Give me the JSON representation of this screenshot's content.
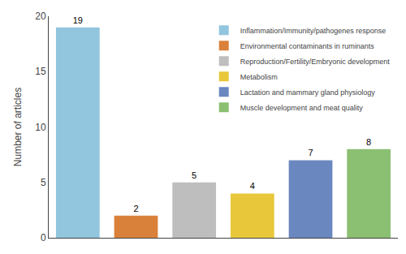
{
  "chart_data": {
    "type": "bar",
    "categories": [
      "Inflammation/Immunity/pathogenes response",
      "Environmental contaminants in ruminants",
      "Reproduction/Fertility/Embryonic development",
      "Metabolism",
      "Lactation and mammary gland physiology",
      "Muscle development and meat quality"
    ],
    "values": [
      19,
      2,
      5,
      4,
      7,
      8
    ],
    "colors": [
      "#92C5DE",
      "#D9813A",
      "#BEBEBE",
      "#E8C83A",
      "#6B87C0",
      "#8BBF72"
    ],
    "ylabel": "Number of articles",
    "ylim": [
      0,
      20
    ],
    "yticks": [
      0,
      5,
      10,
      15,
      20
    ],
    "data_labels": true,
    "grid": false,
    "legend": "upper right",
    "tick_labels": "y"
  }
}
